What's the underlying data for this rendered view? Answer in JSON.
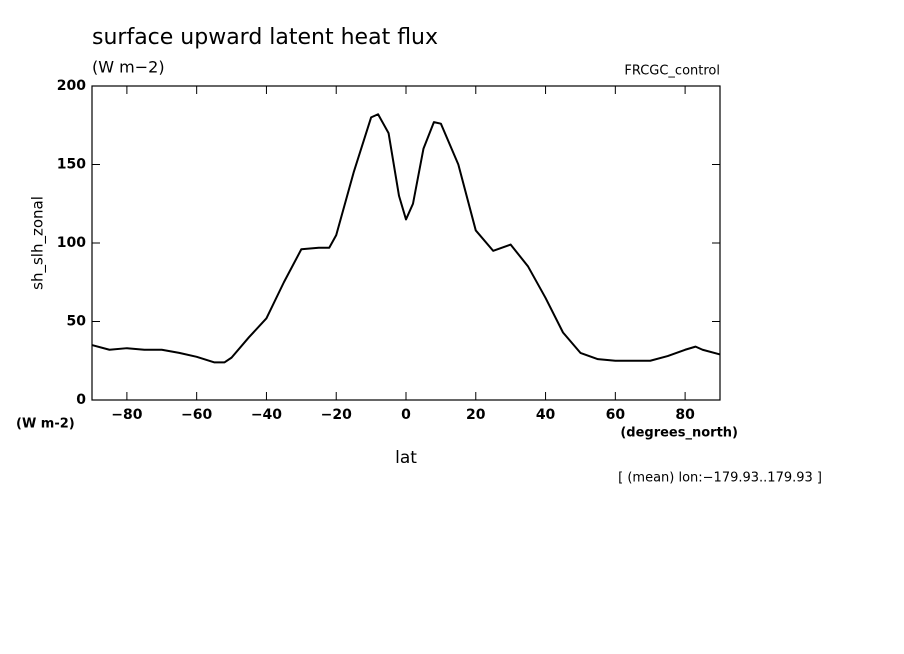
{
  "chart_data": {
    "type": "line",
    "title": "surface upward latent heat flux",
    "subtitle": "(W m−2)",
    "source_label": "FRCGC_control",
    "y_label": "sh_slh_zonal",
    "y_units": "(W m-2)",
    "x_label": "lat",
    "x_units": "(degrees_north)",
    "note": "[ (mean) lon:−179.93..179.93 ]",
    "x": [
      -90,
      -85,
      -80,
      -75,
      -70,
      -65,
      -60,
      -55,
      -52,
      -50,
      -45,
      -40,
      -35,
      -30,
      -25,
      -22,
      -20,
      -15,
      -10,
      -8,
      -5,
      -2,
      0,
      2,
      5,
      8,
      10,
      15,
      20,
      25,
      30,
      35,
      40,
      45,
      50,
      55,
      60,
      65,
      70,
      75,
      80,
      83,
      85,
      90
    ],
    "series": [
      {
        "name": "sh_slh_zonal",
        "color": "#000000",
        "values": [
          35,
          32,
          33,
          32,
          32,
          30,
          27.5,
          24,
          24,
          27,
          40,
          52,
          75,
          96,
          97,
          97,
          105,
          145,
          180,
          182,
          170,
          130,
          115,
          125,
          160,
          177,
          176,
          150,
          108,
          95,
          99,
          85,
          65,
          43,
          30,
          26,
          25,
          25,
          25,
          28,
          32,
          34,
          32,
          29
        ]
      }
    ],
    "xlim": [
      -90,
      90
    ],
    "xticks": [
      -80,
      -60,
      -40,
      -20,
      0,
      20,
      40,
      60,
      80
    ],
    "ylim": [
      0,
      200
    ],
    "yticks": [
      0,
      50,
      100,
      150,
      200
    ]
  }
}
